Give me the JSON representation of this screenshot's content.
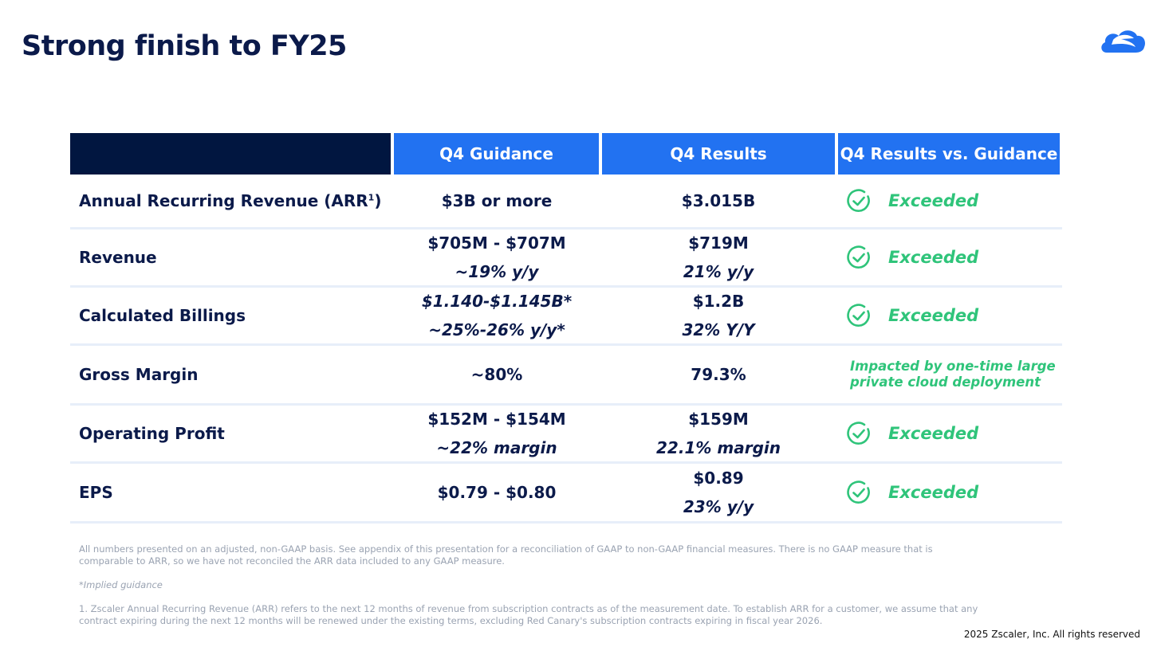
{
  "slide": {
    "title": "Strong finish to FY25",
    "logo_icon": "zscaler-cloud-logo",
    "brand_blue": "#2272f1",
    "header_navy": "#011640",
    "exceeded_green": "#2fc47a"
  },
  "table": {
    "headers": [
      "",
      "Q4 Guidance",
      "Q4 Results",
      "Q4 Results vs. Guidance"
    ],
    "rows": [
      {
        "metric": "Annual Recurring Revenue (ARR",
        "metric_sup": "1",
        "metric_suffix": ")",
        "guidance": [
          "$3B or more"
        ],
        "results": [
          "$3.015B"
        ],
        "vs": "Exceeded",
        "vs_icon": "check-circle-icon"
      },
      {
        "metric": "Revenue",
        "guidance": [
          "$705M - $707M",
          "~19% y/y"
        ],
        "results": [
          "$719M",
          "21% y/y"
        ],
        "vs": "Exceeded",
        "vs_icon": "check-circle-icon"
      },
      {
        "metric": "Calculated Billings",
        "guidance": [
          "$1.140-$1.145B*",
          "~25%-26% y/y*"
        ],
        "results": [
          "$1.2B",
          "32% Y/Y"
        ],
        "vs": "Exceeded",
        "vs_icon": "check-circle-icon"
      },
      {
        "metric": "Gross Margin",
        "guidance": [
          "~80%"
        ],
        "results": [
          "79.3%"
        ],
        "vs_note": [
          "Impacted by one-time large",
          "private cloud deployment"
        ]
      },
      {
        "metric": "Operating Profit",
        "guidance": [
          "$152M - $154M",
          "~22% margin"
        ],
        "results": [
          "$159M",
          "22.1% margin"
        ],
        "vs": "Exceeded",
        "vs_icon": "check-circle-icon"
      },
      {
        "metric": "EPS",
        "guidance": [
          "$0.79 - $0.80"
        ],
        "results": [
          "$0.89",
          "23% y/y"
        ],
        "vs": "Exceeded",
        "vs_icon": "check-circle-icon"
      }
    ]
  },
  "footnotes": {
    "basis": "All numbers presented on an adjusted, non-GAAP basis. See appendix of this presentation for a reconciliation of GAAP to non-GAAP financial measures. There is no GAAP measure that is comparable to ARR, so we have not reconciled the ARR data included to any GAAP measure.",
    "implied": "*Implied guidance",
    "arr_definition": "1. Zscaler Annual Recurring Revenue (ARR) refers to the next 12 months of revenue from subscription contracts as of the measurement date. To establish ARR for a customer, we assume that any contract expiring during the next 12 months will be renewed under the existing terms, excluding Red Canary's subscription contracts expiring in fiscal year 2026."
  },
  "copyright": "2025 Zscaler, Inc. All rights reserved"
}
